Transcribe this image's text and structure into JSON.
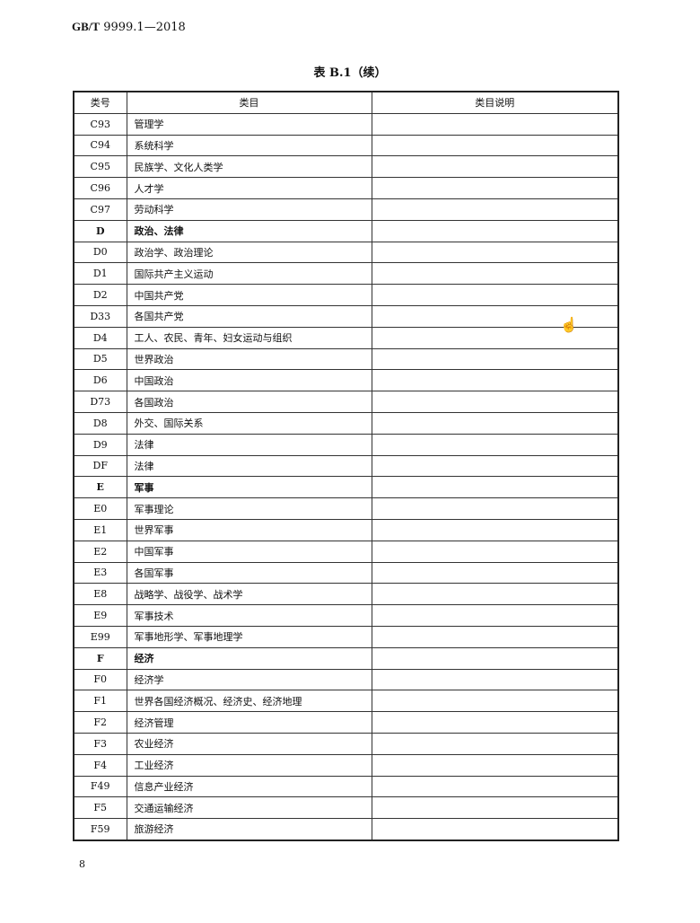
{
  "header": {
    "standard_prefix": "GB/T",
    "standard_number": "9999.1—2018"
  },
  "caption": "表 B.1（续）",
  "table": {
    "columns": [
      "类号",
      "类目",
      "类目说明"
    ],
    "rows": [
      {
        "code": "C93",
        "name": "管理学",
        "bold": false
      },
      {
        "code": "C94",
        "name": "系统科学",
        "bold": false
      },
      {
        "code": "C95",
        "name": "民族学、文化人类学",
        "bold": false
      },
      {
        "code": "C96",
        "name": "人才学",
        "bold": false
      },
      {
        "code": "C97",
        "name": "劳动科学",
        "bold": false
      },
      {
        "code": "D",
        "name": "政治、法律",
        "bold": true
      },
      {
        "code": "D0",
        "name": "政治学、政治理论",
        "bold": false
      },
      {
        "code": "D1",
        "name": "国际共产主义运动",
        "bold": false
      },
      {
        "code": "D2",
        "name": "中国共产党",
        "bold": false
      },
      {
        "code": "D33",
        "name": "各国共产党",
        "bold": false
      },
      {
        "code": "D4",
        "name": "工人、农民、青年、妇女运动与组织",
        "bold": false
      },
      {
        "code": "D5",
        "name": "世界政治",
        "bold": false
      },
      {
        "code": "D6",
        "name": "中国政治",
        "bold": false
      },
      {
        "code": "D73",
        "name": "各国政治",
        "bold": false
      },
      {
        "code": "D8",
        "name": "外交、国际关系",
        "bold": false
      },
      {
        "code": "D9",
        "name": "法律",
        "bold": false
      },
      {
        "code": "DF",
        "name": "法律",
        "bold": false
      },
      {
        "code": "E",
        "name": "军事",
        "bold": true
      },
      {
        "code": "E0",
        "name": "军事理论",
        "bold": false
      },
      {
        "code": "E1",
        "name": "世界军事",
        "bold": false
      },
      {
        "code": "E2",
        "name": "中国军事",
        "bold": false
      },
      {
        "code": "E3",
        "name": "各国军事",
        "bold": false
      },
      {
        "code": "E8",
        "name": "战略学、战役学、战术学",
        "bold": false
      },
      {
        "code": "E9",
        "name": "军事技术",
        "bold": false
      },
      {
        "code": "E99",
        "name": "军事地形学、军事地理学",
        "bold": false
      },
      {
        "code": "F",
        "name": "经济",
        "bold": true
      },
      {
        "code": "F0",
        "name": "经济学",
        "bold": false
      },
      {
        "code": "F1",
        "name": "世界各国经济概况、经济史、经济地理",
        "bold": false
      },
      {
        "code": "F2",
        "name": "经济管理",
        "bold": false
      },
      {
        "code": "F3",
        "name": "农业经济",
        "bold": false
      },
      {
        "code": "F4",
        "name": "工业经济",
        "bold": false
      },
      {
        "code": "F49",
        "name": "信息产业经济",
        "bold": false
      },
      {
        "code": "F5",
        "name": "交通运输经济",
        "bold": false
      },
      {
        "code": "F59",
        "name": "旅游经济",
        "bold": false
      }
    ]
  },
  "page_number": "8",
  "cursor_icon": "hand-pointer-icon"
}
